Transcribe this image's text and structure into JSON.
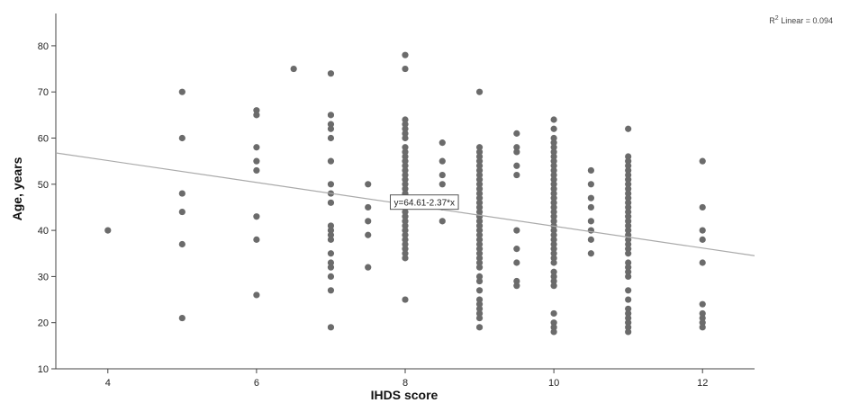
{
  "chart_data": {
    "type": "scatter",
    "xlabel": "IHDS score",
    "ylabel": "Age, years",
    "xlim": [
      3.3,
      12.7
    ],
    "ylim": [
      10,
      87
    ],
    "xticks": [
      4,
      6,
      8,
      10,
      12
    ],
    "yticks": [
      10,
      20,
      30,
      40,
      50,
      60,
      70,
      80
    ],
    "grid": false,
    "r2_prefix": "R",
    "r2_suffix": " Linear = 0.094",
    "r2_superscript": "2",
    "fit_line": {
      "intercept": 64.61,
      "slope": -2.37,
      "equation_label": "y=64.61-2.37*x",
      "label_x": 7.8
    },
    "points": [
      {
        "x": 4,
        "y": 40
      },
      {
        "x": 5,
        "y": 70
      },
      {
        "x": 5,
        "y": 60
      },
      {
        "x": 5,
        "y": 48
      },
      {
        "x": 5,
        "y": 44
      },
      {
        "x": 5,
        "y": 37
      },
      {
        "x": 5,
        "y": 21
      },
      {
        "x": 6,
        "y": 66
      },
      {
        "x": 6,
        "y": 65
      },
      {
        "x": 6,
        "y": 58
      },
      {
        "x": 6,
        "y": 55
      },
      {
        "x": 6,
        "y": 53
      },
      {
        "x": 6,
        "y": 43
      },
      {
        "x": 6,
        "y": 38
      },
      {
        "x": 6,
        "y": 26
      },
      {
        "x": 6.5,
        "y": 75
      },
      {
        "x": 7,
        "y": 74
      },
      {
        "x": 7,
        "y": 65
      },
      {
        "x": 7,
        "y": 63
      },
      {
        "x": 7,
        "y": 62
      },
      {
        "x": 7,
        "y": 60
      },
      {
        "x": 7,
        "y": 55
      },
      {
        "x": 7,
        "y": 50
      },
      {
        "x": 7,
        "y": 48
      },
      {
        "x": 7,
        "y": 46
      },
      {
        "x": 7,
        "y": 41
      },
      {
        "x": 7,
        "y": 40
      },
      {
        "x": 7,
        "y": 39
      },
      {
        "x": 7,
        "y": 38
      },
      {
        "x": 7,
        "y": 35
      },
      {
        "x": 7,
        "y": 33
      },
      {
        "x": 7,
        "y": 32
      },
      {
        "x": 7,
        "y": 30
      },
      {
        "x": 7,
        "y": 27
      },
      {
        "x": 7,
        "y": 19
      },
      {
        "x": 7.5,
        "y": 50
      },
      {
        "x": 7.5,
        "y": 45
      },
      {
        "x": 7.5,
        "y": 42
      },
      {
        "x": 7.5,
        "y": 39
      },
      {
        "x": 7.5,
        "y": 32
      },
      {
        "x": 8,
        "y": 78
      },
      {
        "x": 8,
        "y": 75
      },
      {
        "x": 8,
        "y": 64
      },
      {
        "x": 8,
        "y": 63
      },
      {
        "x": 8,
        "y": 62
      },
      {
        "x": 8,
        "y": 61
      },
      {
        "x": 8,
        "y": 60
      },
      {
        "x": 8,
        "y": 58
      },
      {
        "x": 8,
        "y": 57
      },
      {
        "x": 8,
        "y": 56
      },
      {
        "x": 8,
        "y": 55
      },
      {
        "x": 8,
        "y": 54
      },
      {
        "x": 8,
        "y": 53
      },
      {
        "x": 8,
        "y": 52
      },
      {
        "x": 8,
        "y": 51
      },
      {
        "x": 8,
        "y": 50
      },
      {
        "x": 8,
        "y": 49
      },
      {
        "x": 8,
        "y": 48
      },
      {
        "x": 8,
        "y": 47
      },
      {
        "x": 8,
        "y": 46
      },
      {
        "x": 8,
        "y": 45
      },
      {
        "x": 8,
        "y": 44
      },
      {
        "x": 8,
        "y": 43
      },
      {
        "x": 8,
        "y": 42
      },
      {
        "x": 8,
        "y": 41
      },
      {
        "x": 8,
        "y": 40
      },
      {
        "x": 8,
        "y": 39
      },
      {
        "x": 8,
        "y": 38
      },
      {
        "x": 8,
        "y": 37
      },
      {
        "x": 8,
        "y": 36
      },
      {
        "x": 8,
        "y": 35
      },
      {
        "x": 8,
        "y": 34
      },
      {
        "x": 8,
        "y": 25
      },
      {
        "x": 8.5,
        "y": 59
      },
      {
        "x": 8.5,
        "y": 55
      },
      {
        "x": 8.5,
        "y": 52
      },
      {
        "x": 8.5,
        "y": 50
      },
      {
        "x": 8.5,
        "y": 47
      },
      {
        "x": 8.5,
        "y": 45
      },
      {
        "x": 8.5,
        "y": 42
      },
      {
        "x": 9,
        "y": 70
      },
      {
        "x": 9,
        "y": 58
      },
      {
        "x": 9,
        "y": 57
      },
      {
        "x": 9,
        "y": 56
      },
      {
        "x": 9,
        "y": 55
      },
      {
        "x": 9,
        "y": 54
      },
      {
        "x": 9,
        "y": 53
      },
      {
        "x": 9,
        "y": 52
      },
      {
        "x": 9,
        "y": 51
      },
      {
        "x": 9,
        "y": 50
      },
      {
        "x": 9,
        "y": 49
      },
      {
        "x": 9,
        "y": 48
      },
      {
        "x": 9,
        "y": 47
      },
      {
        "x": 9,
        "y": 46
      },
      {
        "x": 9,
        "y": 45
      },
      {
        "x": 9,
        "y": 44
      },
      {
        "x": 9,
        "y": 43
      },
      {
        "x": 9,
        "y": 42
      },
      {
        "x": 9,
        "y": 41
      },
      {
        "x": 9,
        "y": 40
      },
      {
        "x": 9,
        "y": 39
      },
      {
        "x": 9,
        "y": 38
      },
      {
        "x": 9,
        "y": 37
      },
      {
        "x": 9,
        "y": 36
      },
      {
        "x": 9,
        "y": 35
      },
      {
        "x": 9,
        "y": 34
      },
      {
        "x": 9,
        "y": 33
      },
      {
        "x": 9,
        "y": 32
      },
      {
        "x": 9,
        "y": 30
      },
      {
        "x": 9,
        "y": 29
      },
      {
        "x": 9,
        "y": 27
      },
      {
        "x": 9,
        "y": 25
      },
      {
        "x": 9,
        "y": 24
      },
      {
        "x": 9,
        "y": 23
      },
      {
        "x": 9,
        "y": 22
      },
      {
        "x": 9,
        "y": 21
      },
      {
        "x": 9,
        "y": 19
      },
      {
        "x": 9.5,
        "y": 61
      },
      {
        "x": 9.5,
        "y": 58
      },
      {
        "x": 9.5,
        "y": 57
      },
      {
        "x": 9.5,
        "y": 54
      },
      {
        "x": 9.5,
        "y": 52
      },
      {
        "x": 9.5,
        "y": 40
      },
      {
        "x": 9.5,
        "y": 36
      },
      {
        "x": 9.5,
        "y": 33
      },
      {
        "x": 9.5,
        "y": 29
      },
      {
        "x": 9.5,
        "y": 28
      },
      {
        "x": 10,
        "y": 64
      },
      {
        "x": 10,
        "y": 62
      },
      {
        "x": 10,
        "y": 60
      },
      {
        "x": 10,
        "y": 59
      },
      {
        "x": 10,
        "y": 58
      },
      {
        "x": 10,
        "y": 57
      },
      {
        "x": 10,
        "y": 56
      },
      {
        "x": 10,
        "y": 55
      },
      {
        "x": 10,
        "y": 54
      },
      {
        "x": 10,
        "y": 53
      },
      {
        "x": 10,
        "y": 52
      },
      {
        "x": 10,
        "y": 51
      },
      {
        "x": 10,
        "y": 50
      },
      {
        "x": 10,
        "y": 49
      },
      {
        "x": 10,
        "y": 48
      },
      {
        "x": 10,
        "y": 47
      },
      {
        "x": 10,
        "y": 46
      },
      {
        "x": 10,
        "y": 45
      },
      {
        "x": 10,
        "y": 44
      },
      {
        "x": 10,
        "y": 43
      },
      {
        "x": 10,
        "y": 42
      },
      {
        "x": 10,
        "y": 41
      },
      {
        "x": 10,
        "y": 40
      },
      {
        "x": 10,
        "y": 39
      },
      {
        "x": 10,
        "y": 38
      },
      {
        "x": 10,
        "y": 37
      },
      {
        "x": 10,
        "y": 36
      },
      {
        "x": 10,
        "y": 35
      },
      {
        "x": 10,
        "y": 34
      },
      {
        "x": 10,
        "y": 33
      },
      {
        "x": 10,
        "y": 31
      },
      {
        "x": 10,
        "y": 30
      },
      {
        "x": 10,
        "y": 29
      },
      {
        "x": 10,
        "y": 28
      },
      {
        "x": 10,
        "y": 22
      },
      {
        "x": 10,
        "y": 20
      },
      {
        "x": 10,
        "y": 19
      },
      {
        "x": 10,
        "y": 18
      },
      {
        "x": 10.5,
        "y": 53
      },
      {
        "x": 10.5,
        "y": 50
      },
      {
        "x": 10.5,
        "y": 47
      },
      {
        "x": 10.5,
        "y": 45
      },
      {
        "x": 10.5,
        "y": 42
      },
      {
        "x": 10.5,
        "y": 40
      },
      {
        "x": 10.5,
        "y": 38
      },
      {
        "x": 10.5,
        "y": 35
      },
      {
        "x": 11,
        "y": 62
      },
      {
        "x": 11,
        "y": 56
      },
      {
        "x": 11,
        "y": 55
      },
      {
        "x": 11,
        "y": 54
      },
      {
        "x": 11,
        "y": 53
      },
      {
        "x": 11,
        "y": 52
      },
      {
        "x": 11,
        "y": 51
      },
      {
        "x": 11,
        "y": 50
      },
      {
        "x": 11,
        "y": 49
      },
      {
        "x": 11,
        "y": 48
      },
      {
        "x": 11,
        "y": 47
      },
      {
        "x": 11,
        "y": 46
      },
      {
        "x": 11,
        "y": 45
      },
      {
        "x": 11,
        "y": 44
      },
      {
        "x": 11,
        "y": 43
      },
      {
        "x": 11,
        "y": 42
      },
      {
        "x": 11,
        "y": 41
      },
      {
        "x": 11,
        "y": 40
      },
      {
        "x": 11,
        "y": 39
      },
      {
        "x": 11,
        "y": 38
      },
      {
        "x": 11,
        "y": 37
      },
      {
        "x": 11,
        "y": 36
      },
      {
        "x": 11,
        "y": 35
      },
      {
        "x": 11,
        "y": 33
      },
      {
        "x": 11,
        "y": 32
      },
      {
        "x": 11,
        "y": 31
      },
      {
        "x": 11,
        "y": 30
      },
      {
        "x": 11,
        "y": 27
      },
      {
        "x": 11,
        "y": 25
      },
      {
        "x": 11,
        "y": 23
      },
      {
        "x": 11,
        "y": 22
      },
      {
        "x": 11,
        "y": 21
      },
      {
        "x": 11,
        "y": 20
      },
      {
        "x": 11,
        "y": 19
      },
      {
        "x": 11,
        "y": 18
      },
      {
        "x": 12,
        "y": 55
      },
      {
        "x": 12,
        "y": 45
      },
      {
        "x": 12,
        "y": 40
      },
      {
        "x": 12,
        "y": 38
      },
      {
        "x": 12,
        "y": 33
      },
      {
        "x": 12,
        "y": 24
      },
      {
        "x": 12,
        "y": 22
      },
      {
        "x": 12,
        "y": 21
      },
      {
        "x": 12,
        "y": 20
      },
      {
        "x": 12,
        "y": 19
      }
    ]
  }
}
